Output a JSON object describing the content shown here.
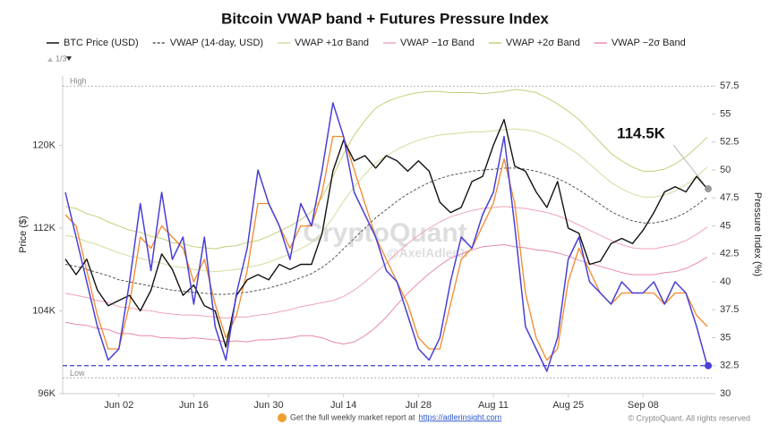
{
  "chart_data": {
    "type": "line",
    "title": "Bitcoin VWAP band + Futures Pressure Index",
    "y_label": "Price ($)",
    "y2_label": "Pressure Index (%)",
    "legend_page": "1/3",
    "watermark": "CryptoQuant",
    "watermark_handle": "@AxelAdlerJr",
    "footer_text": "Get the full weekly market report at",
    "footer_link": "https://adlerinsight.com",
    "copyright": "© CryptoQuant. All rights reserved",
    "annotations": [
      {
        "text": "114.5K",
        "series": 0
      }
    ],
    "reference_lines": [
      {
        "label": "High",
        "value": 57.5,
        "axis": "y2",
        "color": "#999999"
      },
      {
        "label": "Low",
        "value": 31.4,
        "axis": "y2",
        "color": "#999999"
      },
      {
        "value": 32.5,
        "axis": "y2",
        "color": "#3b3bd9"
      }
    ],
    "grid": false,
    "x": [
      "May 23",
      "May 25",
      "May 27",
      "May 29",
      "May 31",
      "Jun 02",
      "Jun 04",
      "Jun 06",
      "Jun 08",
      "Jun 10",
      "Jun 12",
      "Jun 14",
      "Jun 16",
      "Jun 18",
      "Jun 20",
      "Jun 22",
      "Jun 24",
      "Jun 26",
      "Jun 28",
      "Jun 30",
      "Jul 02",
      "Jul 04",
      "Jul 06",
      "Jul 08",
      "Jul 10",
      "Jul 12",
      "Jul 14",
      "Jul 16",
      "Jul 18",
      "Jul 20",
      "Jul 22",
      "Jul 24",
      "Jul 26",
      "Jul 28",
      "Jul 30",
      "Aug 01",
      "Aug 03",
      "Aug 05",
      "Aug 07",
      "Aug 09",
      "Aug 11",
      "Aug 13",
      "Aug 15",
      "Aug 17",
      "Aug 19",
      "Aug 21",
      "Aug 23",
      "Aug 25",
      "Aug 27",
      "Aug 29",
      "Aug 31",
      "Sep 02",
      "Sep 04",
      "Sep 06",
      "Sep 08",
      "Sep 10",
      "Sep 12",
      "Sep 14",
      "Sep 16",
      "Sep 18",
      "Sep 20"
    ],
    "xticks": [
      "Jun 02",
      "Jun 16",
      "Jun 30",
      "Jul 14",
      "Jul 28",
      "Aug 11",
      "Aug 25",
      "Sep 08"
    ],
    "ylim": [
      96000,
      126700
    ],
    "yticks": [
      {
        "value": 96000,
        "label": "96K"
      },
      {
        "value": 104000,
        "label": "104K"
      },
      {
        "value": 112000,
        "label": "112K"
      },
      {
        "value": 120000,
        "label": "120K"
      }
    ],
    "y2lim": [
      30,
      58.4
    ],
    "y2ticks": [
      30,
      32.5,
      35,
      37.5,
      40,
      42.5,
      45,
      47.5,
      50,
      52.5,
      55,
      57.5
    ],
    "series": [
      {
        "name": "BTC Price (USD)",
        "color": "#111111",
        "width": 1.4,
        "values": [
          109000,
          107500,
          109000,
          106000,
          104500,
          105000,
          105500,
          104000,
          106000,
          109500,
          108000,
          105500,
          106500,
          104500,
          104000,
          100500,
          105500,
          107000,
          107500,
          107000,
          108500,
          108000,
          108500,
          108500,
          111500,
          117500,
          120500,
          118500,
          119000,
          117800,
          119000,
          118500,
          117500,
          118500,
          117500,
          114500,
          113500,
          114000,
          116500,
          117000,
          120000,
          122500,
          118000,
          117500,
          115500,
          114000,
          116500,
          112000,
          111500,
          108500,
          108800,
          110500,
          111000,
          110500,
          111800,
          113500,
          115500,
          116000,
          115500,
          117000,
          115800
        ]
      },
      {
        "name": "VWAP (14-day, USD)",
        "color": "#555555",
        "width": 1,
        "dash": true,
        "values": [
          108500,
          108300,
          108000,
          107700,
          107400,
          107000,
          106800,
          106600,
          106400,
          106200,
          106000,
          105900,
          105800,
          105700,
          105600,
          105600,
          105700,
          105800,
          106000,
          106200,
          106500,
          106800,
          107200,
          107600,
          108200,
          109000,
          110000,
          111000,
          112000,
          113000,
          113800,
          114600,
          115300,
          115900,
          116400,
          116800,
          117100,
          117300,
          117500,
          117600,
          117700,
          117800,
          117800,
          117700,
          117500,
          117200,
          116800,
          116300,
          115700,
          115000,
          114300,
          113600,
          113100,
          112700,
          112500,
          112500,
          112700,
          113000,
          113500,
          114200,
          115000
        ]
      },
      {
        "name": "VWAP +1σ Band",
        "color": "#d3dc9c",
        "width": 1,
        "values": [
          111300,
          111100,
          110700,
          110400,
          110000,
          109600,
          109300,
          109100,
          108800,
          108600,
          108300,
          108200,
          108000,
          107900,
          107800,
          107900,
          108000,
          108200,
          108400,
          108700,
          109100,
          109500,
          110000,
          110600,
          111600,
          113000,
          114600,
          116000,
          117200,
          118300,
          119000,
          119600,
          120100,
          120500,
          120800,
          121000,
          121100,
          121200,
          121300,
          121300,
          121400,
          121500,
          121600,
          121500,
          121300,
          120900,
          120400,
          119800,
          119100,
          118200,
          117300,
          116400,
          115800,
          115300,
          115000,
          115000,
          115200,
          115600,
          116200,
          117000,
          117900
        ]
      },
      {
        "name": "VWAP −1σ Band",
        "color": "#f0a4b8",
        "width": 1,
        "values": [
          105700,
          105500,
          105300,
          105000,
          104800,
          104400,
          104300,
          104100,
          104000,
          103800,
          103700,
          103600,
          103600,
          103500,
          103400,
          103300,
          103400,
          103400,
          103600,
          103700,
          103900,
          104100,
          104400,
          104600,
          104800,
          105000,
          105400,
          106000,
          106800,
          107700,
          108600,
          109600,
          110500,
          111300,
          112000,
          112600,
          113100,
          113400,
          113700,
          113900,
          114000,
          114100,
          114000,
          113900,
          113700,
          113500,
          113200,
          112800,
          112300,
          111800,
          111300,
          110800,
          110400,
          110100,
          110000,
          110000,
          110200,
          110400,
          110800,
          111400,
          112100
        ]
      },
      {
        "name": "VWAP +2σ Band",
        "color": "#c4cf7c",
        "width": 1,
        "values": [
          114100,
          113900,
          113400,
          113100,
          112600,
          112200,
          111800,
          111600,
          111200,
          111000,
          110600,
          110500,
          110200,
          110100,
          110000,
          110200,
          110300,
          110600,
          110800,
          111200,
          111700,
          112200,
          112800,
          113600,
          115000,
          117000,
          119200,
          121000,
          122400,
          123600,
          124200,
          124600,
          124900,
          125100,
          125200,
          125200,
          125100,
          125100,
          125100,
          125000,
          125100,
          125200,
          125400,
          125300,
          125100,
          124600,
          124000,
          123300,
          122500,
          121400,
          120300,
          119200,
          118500,
          117900,
          117500,
          117500,
          117700,
          118200,
          118900,
          119800,
          120800
        ]
      },
      {
        "name": "VWAP −2σ Band",
        "color": "#e889a8",
        "width": 1,
        "values": [
          102900,
          102700,
          102600,
          102300,
          102200,
          101800,
          101800,
          101600,
          101600,
          101400,
          101400,
          101300,
          101400,
          101300,
          101200,
          101000,
          101100,
          101000,
          101200,
          101200,
          101300,
          101400,
          101600,
          101600,
          101400,
          101000,
          100800,
          101000,
          101600,
          102400,
          103400,
          104600,
          105700,
          106700,
          107600,
          108400,
          109100,
          109500,
          109900,
          110200,
          110300,
          110400,
          110200,
          110100,
          109900,
          109800,
          109600,
          109300,
          108900,
          108600,
          108300,
          108000,
          107700,
          107500,
          107500,
          107500,
          107700,
          107800,
          108100,
          108600,
          109200
        ]
      },
      {
        "color": "#f08a2c",
        "width": 1.3,
        "axis": "y2",
        "values": [
          46,
          45,
          41,
          37,
          34,
          34,
          38,
          44,
          43,
          45,
          44,
          43,
          40,
          42,
          38,
          35,
          37,
          41,
          47,
          47,
          45,
          43,
          45,
          45,
          48,
          53,
          53,
          50,
          47,
          44,
          42,
          40,
          38,
          35,
          34,
          34,
          38,
          42,
          43,
          45,
          47,
          51,
          47,
          39,
          35,
          33,
          34,
          40,
          43,
          41,
          39,
          38,
          39,
          39,
          39,
          39,
          38,
          39,
          39,
          37,
          36
        ]
      },
      {
        "color": "#4a3fd6",
        "width": 1.5,
        "axis": "y2",
        "values": [
          48,
          44,
          40,
          36,
          33,
          34,
          40,
          47,
          41,
          48,
          42,
          44,
          38,
          44,
          36,
          33,
          39,
          43,
          50,
          47,
          45,
          42,
          47,
          45,
          50,
          56,
          53,
          48,
          46,
          44,
          41,
          40,
          37,
          34,
          33,
          35,
          40,
          44,
          43,
          46,
          48,
          53,
          45,
          36,
          34,
          32,
          35,
          42,
          44,
          40,
          39,
          38,
          40,
          39,
          39,
          40,
          38,
          40,
          39,
          36,
          32.5
        ]
      }
    ]
  }
}
